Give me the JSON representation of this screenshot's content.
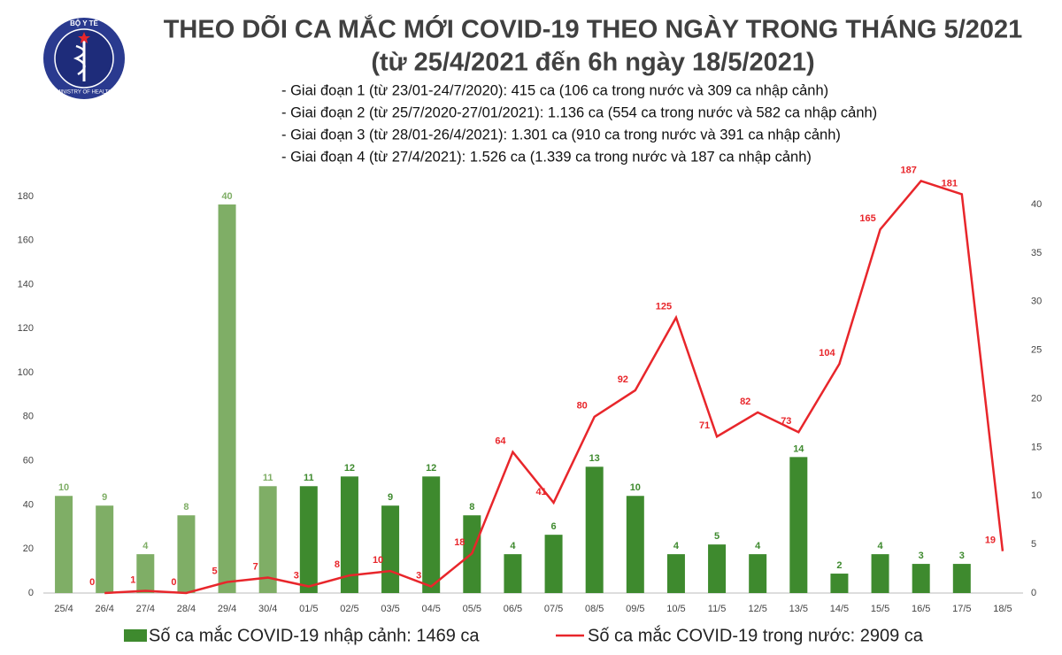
{
  "logo": {
    "top": "BỘ Y TẾ",
    "bottom": "MINISTRY OF HEALTH"
  },
  "chart_data": {
    "type": "combo",
    "title": "THEO DÕI CA MẮC MỚI COVID-19 THEO NGÀY TRONG THÁNG 5/2021",
    "subtitle": "(từ 25/4/2021 đến 6h ngày 18/5/2021)",
    "notes": [
      "- Giai đoạn 1 (từ 23/01-24/7/2020): 415 ca (106 ca trong nước và 309 ca nhập cảnh)",
      "- Giai đoạn 2 (từ 25/7/2020-27/01/2021): 1.136 ca (554 ca trong nước và 582 ca nhập cảnh)",
      "- Giai đoạn 3 (từ 28/01-26/4/2021): 1.301 ca (910 ca trong nước và 391 ca nhập cảnh)",
      "- Giai đoạn 4 (từ 27/4/2021): 1.526 ca (1.339 ca trong nước và 187 ca nhập cảnh)"
    ],
    "categories": [
      "25/4",
      "26/4",
      "27/4",
      "28/4",
      "29/4",
      "30/4",
      "01/5",
      "02/5",
      "03/5",
      "04/5",
      "05/5",
      "06/5",
      "07/5",
      "08/5",
      "09/5",
      "10/5",
      "11/5",
      "12/5",
      "13/5",
      "14/5",
      "15/5",
      "16/5",
      "17/5",
      "18/5"
    ],
    "series": [
      {
        "name": "Số ca mắc COVID-19 nhập cảnh: 1469 ca",
        "type": "bar",
        "axis": "y2",
        "color": "#3e8a2e",
        "colors": [
          "#7fae66",
          "#7fae66",
          "#7fae66",
          "#7fae66",
          "#7fae66",
          "#7fae66",
          "#3e8a2e",
          "#3e8a2e",
          "#3e8a2e",
          "#3e8a2e",
          "#3e8a2e",
          "#3e8a2e",
          "#3e8a2e",
          "#3e8a2e",
          "#3e8a2e",
          "#3e8a2e",
          "#3e8a2e",
          "#3e8a2e",
          "#3e8a2e",
          "#3e8a2e",
          "#3e8a2e",
          "#3e8a2e",
          "#3e8a2e",
          "#3e8a2e"
        ],
        "values": [
          10,
          9,
          4,
          8,
          40,
          11,
          11,
          12,
          9,
          12,
          8,
          4,
          6,
          13,
          10,
          4,
          5,
          4,
          14,
          2,
          4,
          3,
          3,
          null
        ]
      },
      {
        "name": "Số ca mắc COVID-19 trong nước: 2909 ca",
        "type": "line",
        "color": "#e8262b",
        "values": [
          null,
          0,
          1,
          0,
          5,
          7,
          3,
          8,
          10,
          3,
          18,
          64,
          41,
          80,
          92,
          125,
          71,
          82,
          73,
          104,
          165,
          187,
          181,
          19
        ]
      }
    ],
    "ylim": [
      0,
      190
    ],
    "yticks": [
      0,
      20,
      40,
      60,
      80,
      100,
      120,
      140,
      160,
      180
    ],
    "y2lim": [
      0,
      43.1
    ],
    "y2ticks": [
      0,
      5,
      10,
      15,
      20,
      25,
      30,
      35,
      40
    ]
  }
}
